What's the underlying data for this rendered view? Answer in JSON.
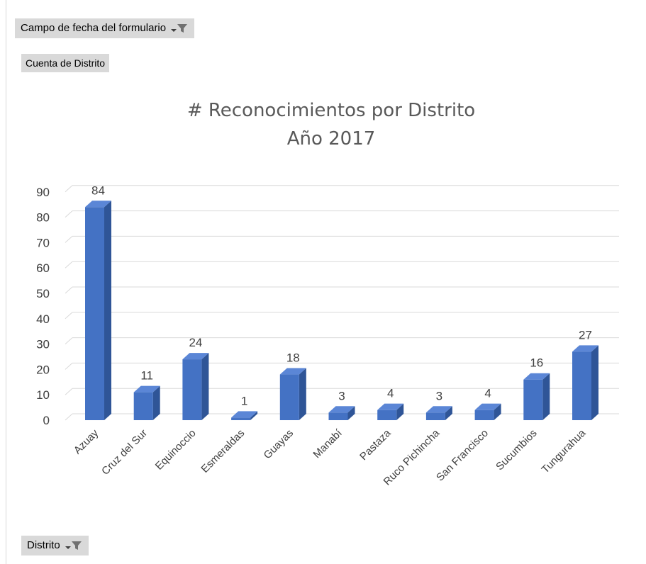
{
  "controls": {
    "date_field_label": "Campo de fecha del formulario",
    "value_field_label": "Cuenta de Distrito",
    "axis_field_label": "Distrito"
  },
  "icons": {
    "filter": "filter-icon"
  },
  "colors": {
    "bar_front": "#4472c4",
    "bar_side": "#2f5597",
    "bar_top": "#5b86d6",
    "gridline": "#d9d9d9"
  },
  "chart_data": {
    "type": "bar",
    "title_lines": [
      "# Reconocimientos por Distrito",
      "Año 2017"
    ],
    "categories": [
      "Azuay",
      "Cruz del Sur",
      "Equinoccio",
      "Esmeraldas",
      "Guayas",
      "Manabí",
      "Pastaza",
      "Ruco Pichincha",
      "San Francisco",
      "Sucumbios",
      "Tungurahua"
    ],
    "values": [
      84,
      11,
      24,
      1,
      18,
      3,
      4,
      3,
      4,
      16,
      27
    ],
    "ylim": [
      0,
      90
    ],
    "yticks": [
      0,
      10,
      20,
      30,
      40,
      50,
      60,
      70,
      80,
      90
    ],
    "grid": true,
    "data_labels": true,
    "style": "3d-column"
  }
}
